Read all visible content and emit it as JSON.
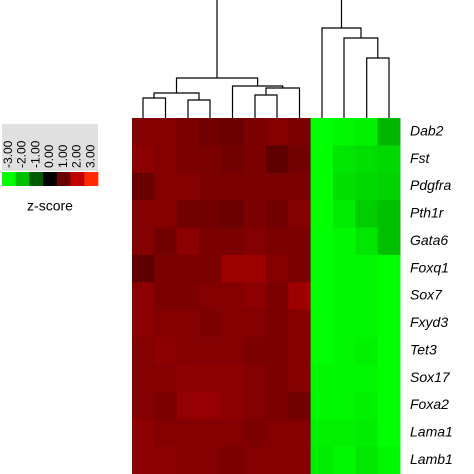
{
  "chart_data": {
    "type": "heatmap",
    "rows": [
      "Dab2",
      "Fst",
      "Pdgfra",
      "Pth1r",
      "Gata6",
      "Foxq1",
      "Sox7",
      "Fxyd3",
      "Tet3",
      "Sox17",
      "Foxa2",
      "Lama1",
      "Lamb1"
    ],
    "values": [
      [
        1.3,
        1.3,
        1.2,
        1.1,
        1.0,
        1.2,
        1.3,
        1.2,
        -3.0,
        -2.9,
        -2.8,
        -1.9
      ],
      [
        1.4,
        1.3,
        1.2,
        1.2,
        1.1,
        1.2,
        0.9,
        1.1,
        -3.0,
        -2.6,
        -2.5,
        -2.4
      ],
      [
        1.0,
        1.3,
        1.3,
        1.2,
        1.2,
        1.2,
        1.2,
        1.2,
        -3.0,
        -2.5,
        -2.4,
        -2.3
      ],
      [
        1.3,
        1.3,
        1.1,
        1.1,
        1.0,
        1.2,
        1.1,
        1.3,
        -3.0,
        -2.7,
        -2.2,
        -2.0
      ],
      [
        1.3,
        1.1,
        1.4,
        1.2,
        1.2,
        1.3,
        1.2,
        1.2,
        -3.0,
        -2.9,
        -2.6,
        -2.0
      ],
      [
        0.9,
        1.2,
        1.2,
        1.2,
        1.6,
        1.6,
        1.3,
        1.2,
        -3.0,
        -2.9,
        -2.9,
        -3.0
      ],
      [
        1.4,
        1.2,
        1.2,
        1.3,
        1.3,
        1.4,
        1.2,
        1.6,
        -3.0,
        -2.9,
        -2.9,
        -3.0
      ],
      [
        1.4,
        1.3,
        1.3,
        1.2,
        1.3,
        1.3,
        1.2,
        1.3,
        -3.0,
        -2.9,
        -2.9,
        -3.0
      ],
      [
        1.3,
        1.4,
        1.3,
        1.3,
        1.3,
        1.2,
        1.2,
        1.3,
        -3.0,
        -2.9,
        -2.8,
        -3.0
      ],
      [
        1.3,
        1.3,
        1.4,
        1.4,
        1.4,
        1.3,
        1.2,
        1.3,
        -2.9,
        -2.9,
        -2.9,
        -3.0
      ],
      [
        1.3,
        1.2,
        1.5,
        1.5,
        1.4,
        1.3,
        1.2,
        1.1,
        -2.9,
        -2.9,
        -2.8,
        -3.0
      ],
      [
        1.4,
        1.3,
        1.3,
        1.3,
        1.3,
        1.2,
        1.3,
        1.3,
        -2.8,
        -2.8,
        -2.7,
        -3.0
      ],
      [
        1.4,
        1.4,
        1.3,
        1.3,
        1.2,
        1.3,
        1.3,
        1.3,
        -2.7,
        -2.9,
        -2.6,
        -2.9
      ]
    ],
    "colorbar": {
      "label": "z-score",
      "ticks": [
        {
          "value": -3,
          "label": "-3.00"
        },
        {
          "value": -2,
          "label": "-2.00"
        },
        {
          "value": -1,
          "label": "-1.00"
        },
        {
          "value": 0,
          "label": "0.00"
        },
        {
          "value": 1,
          "label": "1.00"
        },
        {
          "value": 2,
          "label": "2.00"
        },
        {
          "value": 3,
          "label": "3.00"
        }
      ],
      "colors": [
        "#00ff00",
        "#00c000",
        "#005a00",
        "#000000",
        "#6a0000",
        "#c00000",
        "#ff2a00"
      ]
    }
  }
}
